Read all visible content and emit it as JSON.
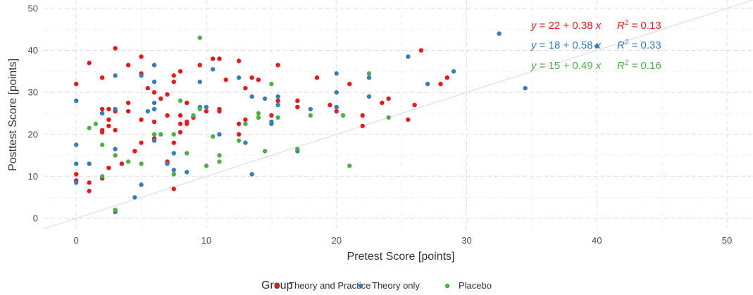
{
  "chart_data": {
    "type": "scatter",
    "xlabel": "Pretest Score [points]",
    "ylabel": "Posttest Score [points]",
    "xlim": [
      -2.5,
      52
    ],
    "ylim": [
      -2.5,
      52
    ],
    "x_ticks": [
      "0",
      "10",
      "20",
      "30",
      "40",
      "50"
    ],
    "y_ticks": [
      "0",
      "10",
      "20",
      "30",
      "40",
      "50"
    ],
    "grid": true,
    "identity_line": true,
    "legend_position": "bottom",
    "legend_title": "Group",
    "series": [
      {
        "name": "Theory and Practice",
        "color": "#e41a1c",
        "equation": {
          "lhs": "y",
          "rhs": "= 22 + 0.38",
          "var": "x",
          "r2_label": "R",
          "r2_value": "= 0.13"
        },
        "points": [
          [
            0,
            32
          ],
          [
            0,
            10.5
          ],
          [
            0,
            9
          ],
          [
            1,
            37
          ],
          [
            1,
            8.5
          ],
          [
            1,
            6.5
          ],
          [
            2,
            33.5
          ],
          [
            2,
            26
          ],
          [
            2,
            21
          ],
          [
            2,
            20.5
          ],
          [
            2,
            9.5
          ],
          [
            2.5,
            26
          ],
          [
            2.5,
            23.5
          ],
          [
            2.5,
            22
          ],
          [
            2.5,
            12
          ],
          [
            3,
            40.5
          ],
          [
            3,
            25.5
          ],
          [
            3,
            21
          ],
          [
            3.5,
            13
          ],
          [
            4,
            36.5
          ],
          [
            4,
            27.5
          ],
          [
            4,
            25.5
          ],
          [
            4.5,
            16
          ],
          [
            5,
            38.5
          ],
          [
            5,
            34.5
          ],
          [
            5,
            23.5
          ],
          [
            5,
            18
          ],
          [
            5.5,
            31
          ],
          [
            6,
            30
          ],
          [
            6,
            23
          ],
          [
            6,
            19
          ],
          [
            6.5,
            28.5
          ],
          [
            7,
            29.5
          ],
          [
            7,
            24.5
          ],
          [
            7,
            13.5
          ],
          [
            7.5,
            34
          ],
          [
            7.5,
            32.5
          ],
          [
            7.5,
            18
          ],
          [
            7.5,
            7
          ],
          [
            8,
            35
          ],
          [
            8,
            24.5
          ],
          [
            8,
            22.5
          ],
          [
            8,
            20.5
          ],
          [
            8.5,
            27.5
          ],
          [
            8.5,
            23
          ],
          [
            8.5,
            22.5
          ],
          [
            9,
            24
          ],
          [
            9.5,
            36.5
          ],
          [
            10,
            25.5
          ],
          [
            10.5,
            38
          ],
          [
            11,
            38
          ],
          [
            11,
            26
          ],
          [
            11,
            25.5
          ],
          [
            11.5,
            33
          ],
          [
            12.5,
            37.5
          ],
          [
            12.5,
            22.5
          ],
          [
            12.5,
            20
          ],
          [
            13,
            31
          ],
          [
            13,
            23.5
          ],
          [
            13.5,
            33.5
          ],
          [
            14,
            33
          ],
          [
            15,
            24.5
          ],
          [
            15.5,
            36.5
          ],
          [
            15.5,
            28
          ],
          [
            17,
            28
          ],
          [
            17,
            26.5
          ],
          [
            18.5,
            33.5
          ],
          [
            19.5,
            27
          ],
          [
            20,
            25.5
          ],
          [
            21,
            32
          ],
          [
            22,
            24.5
          ],
          [
            22,
            22
          ],
          [
            23.5,
            27.5
          ],
          [
            24,
            28.5
          ],
          [
            25.5,
            23.5
          ],
          [
            26,
            27
          ],
          [
            26.5,
            40
          ],
          [
            28,
            32
          ],
          [
            28.5,
            33.5
          ]
        ]
      },
      {
        "name": "Theory only",
        "color": "#377eb8",
        "equation": {
          "lhs": "y",
          "rhs": "= 18 + 0.58",
          "var": "x",
          "r2_label": "R",
          "r2_value": "= 0.33"
        },
        "points": [
          [
            0,
            28
          ],
          [
            0,
            17.5
          ],
          [
            0,
            13
          ],
          [
            0,
            8.5
          ],
          [
            1,
            13
          ],
          [
            2,
            25
          ],
          [
            3,
            34
          ],
          [
            3,
            26
          ],
          [
            3,
            16.5
          ],
          [
            3,
            1.5
          ],
          [
            4.5,
            5
          ],
          [
            5,
            34
          ],
          [
            5,
            8
          ],
          [
            5.5,
            25.5
          ],
          [
            6,
            36.5
          ],
          [
            6,
            32.5
          ],
          [
            6,
            27.5
          ],
          [
            6,
            26
          ],
          [
            6,
            18.5
          ],
          [
            7,
            13
          ],
          [
            7.5,
            15.5
          ],
          [
            7.5,
            11.5
          ],
          [
            8.5,
            11
          ],
          [
            9.5,
            32.5
          ],
          [
            9.5,
            26.5
          ],
          [
            10,
            26.5
          ],
          [
            10.5,
            35.5
          ],
          [
            11,
            20
          ],
          [
            12.5,
            33.5
          ],
          [
            13,
            18
          ],
          [
            13.5,
            29
          ],
          [
            13.5,
            10.5
          ],
          [
            14.5,
            28.5
          ],
          [
            15,
            23
          ],
          [
            15,
            22.5
          ],
          [
            15.5,
            29
          ],
          [
            15.5,
            27
          ],
          [
            17,
            16
          ],
          [
            18,
            26
          ],
          [
            20,
            34.5
          ],
          [
            20,
            30
          ],
          [
            20,
            26.5
          ],
          [
            22.5,
            33.5
          ],
          [
            22.5,
            29
          ],
          [
            25.5,
            38.5
          ],
          [
            27,
            32
          ],
          [
            29,
            35
          ],
          [
            32.5,
            44
          ],
          [
            34.5,
            31
          ],
          [
            40,
            41
          ]
        ]
      },
      {
        "name": "Placebo",
        "color": "#4daf4a",
        "equation": {
          "lhs": "y",
          "rhs": "= 15 + 0.49",
          "var": "x",
          "r2_label": "R",
          "r2_value": "= 0.16"
        },
        "points": [
          [
            1,
            21.5
          ],
          [
            1.5,
            22.5
          ],
          [
            2,
            17.5
          ],
          [
            2,
            10
          ],
          [
            3,
            15
          ],
          [
            3,
            2
          ],
          [
            4,
            13.5
          ],
          [
            5,
            13
          ],
          [
            6,
            20
          ],
          [
            6.5,
            20
          ],
          [
            7.5,
            20
          ],
          [
            7.5,
            10.5
          ],
          [
            8,
            28
          ],
          [
            8.5,
            15.5
          ],
          [
            9,
            24.5
          ],
          [
            9.5,
            43
          ],
          [
            9.5,
            26
          ],
          [
            10,
            12.5
          ],
          [
            10.5,
            19.5
          ],
          [
            11,
            15
          ],
          [
            11,
            13.5
          ],
          [
            12.5,
            18.5
          ],
          [
            13,
            22.5
          ],
          [
            14,
            25
          ],
          [
            14,
            24
          ],
          [
            14.5,
            16
          ],
          [
            15,
            32
          ],
          [
            15.5,
            24
          ],
          [
            17,
            16.5
          ],
          [
            18,
            24.5
          ],
          [
            20.5,
            24.5
          ],
          [
            21,
            12.5
          ],
          [
            22.5,
            34.5
          ],
          [
            24,
            24
          ]
        ]
      }
    ]
  }
}
